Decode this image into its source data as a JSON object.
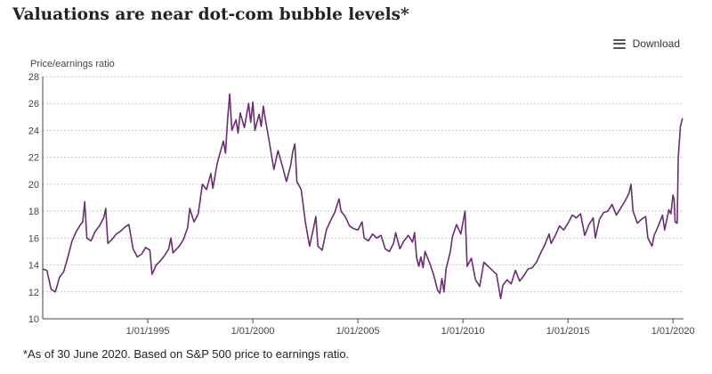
{
  "title": "Valuations are near dot-com bubble levels*",
  "download_label": "Download",
  "footnote": "*As of 30 June 2020. Based on S&P 500 price to earnings ratio.",
  "colors": {
    "line": "#6a2c72",
    "grid": "#c8c8c8",
    "axis": "#444444"
  },
  "chart_data": {
    "type": "line",
    "title": "Valuations are near dot-com bubble levels*",
    "ylabel": "Price/earnings ratio",
    "xlabel": "",
    "ylim": [
      10,
      28
    ],
    "yticks": [
      10,
      12,
      14,
      16,
      18,
      20,
      22,
      24,
      26,
      28
    ],
    "xlim": [
      1990.0,
      2020.5
    ],
    "xticks": [
      {
        "x": 1995,
        "label": "1/01/1995"
      },
      {
        "x": 2000,
        "label": "1/01/2000"
      },
      {
        "x": 2005,
        "label": "1/01/2005"
      },
      {
        "x": 2010,
        "label": "1/01/2010"
      },
      {
        "x": 2015,
        "label": "1/01/2015"
      },
      {
        "x": 2020,
        "label": "1/01/2020"
      }
    ],
    "grid": true,
    "series": [
      {
        "values": [
          [
            1990.0,
            13.7
          ],
          [
            1990.2,
            13.6
          ],
          [
            1990.4,
            12.2
          ],
          [
            1990.6,
            12.0
          ],
          [
            1990.8,
            13.1
          ],
          [
            1991.0,
            13.5
          ],
          [
            1991.2,
            14.6
          ],
          [
            1991.4,
            15.8
          ],
          [
            1991.6,
            16.5
          ],
          [
            1991.8,
            17.0
          ],
          [
            1991.9,
            17.2
          ],
          [
            1992.0,
            18.7
          ],
          [
            1992.1,
            16.0
          ],
          [
            1992.3,
            15.8
          ],
          [
            1992.5,
            16.5
          ],
          [
            1992.7,
            16.9
          ],
          [
            1992.9,
            17.5
          ],
          [
            1993.0,
            18.2
          ],
          [
            1993.1,
            15.6
          ],
          [
            1993.3,
            15.9
          ],
          [
            1993.5,
            16.3
          ],
          [
            1993.7,
            16.5
          ],
          [
            1993.9,
            16.8
          ],
          [
            1994.1,
            17.0
          ],
          [
            1994.3,
            15.2
          ],
          [
            1994.5,
            14.6
          ],
          [
            1994.7,
            14.8
          ],
          [
            1994.9,
            15.3
          ],
          [
            1995.1,
            15.1
          ],
          [
            1995.2,
            13.3
          ],
          [
            1995.4,
            14.0
          ],
          [
            1995.6,
            14.3
          ],
          [
            1995.8,
            14.7
          ],
          [
            1996.0,
            15.2
          ],
          [
            1996.1,
            16.0
          ],
          [
            1996.2,
            14.9
          ],
          [
            1996.5,
            15.4
          ],
          [
            1996.7,
            15.9
          ],
          [
            1996.9,
            16.8
          ],
          [
            1997.0,
            18.2
          ],
          [
            1997.2,
            17.2
          ],
          [
            1997.4,
            17.8
          ],
          [
            1997.6,
            20.0
          ],
          [
            1997.8,
            19.6
          ],
          [
            1998.0,
            20.8
          ],
          [
            1998.1,
            19.7
          ],
          [
            1998.3,
            21.5
          ],
          [
            1998.4,
            22.1
          ],
          [
            1998.6,
            23.2
          ],
          [
            1998.7,
            22.3
          ],
          [
            1998.8,
            24.8
          ],
          [
            1998.9,
            26.7
          ],
          [
            1999.0,
            24.0
          ],
          [
            1999.2,
            24.8
          ],
          [
            1999.3,
            23.8
          ],
          [
            1999.4,
            25.3
          ],
          [
            1999.6,
            24.2
          ],
          [
            1999.8,
            26.0
          ],
          [
            1999.9,
            24.6
          ],
          [
            2000.0,
            26.1
          ],
          [
            2000.1,
            24.0
          ],
          [
            2000.3,
            25.2
          ],
          [
            2000.4,
            24.3
          ],
          [
            2000.5,
            25.8
          ],
          [
            2000.6,
            24.8
          ],
          [
            2000.8,
            23.0
          ],
          [
            2001.0,
            21.1
          ],
          [
            2001.2,
            22.5
          ],
          [
            2001.4,
            21.4
          ],
          [
            2001.6,
            20.2
          ],
          [
            2001.8,
            21.4
          ],
          [
            2001.9,
            22.4
          ],
          [
            2002.0,
            23.0
          ],
          [
            2002.1,
            20.2
          ],
          [
            2002.3,
            19.6
          ],
          [
            2002.5,
            17.2
          ],
          [
            2002.7,
            15.4
          ],
          [
            2002.9,
            16.8
          ],
          [
            2003.0,
            17.6
          ],
          [
            2003.1,
            15.4
          ],
          [
            2003.3,
            15.1
          ],
          [
            2003.5,
            16.6
          ],
          [
            2003.7,
            17.3
          ],
          [
            2003.9,
            17.9
          ],
          [
            2004.1,
            18.9
          ],
          [
            2004.2,
            18.0
          ],
          [
            2004.4,
            17.6
          ],
          [
            2004.6,
            16.9
          ],
          [
            2004.8,
            16.7
          ],
          [
            2005.0,
            16.6
          ],
          [
            2005.2,
            17.2
          ],
          [
            2005.3,
            16.0
          ],
          [
            2005.5,
            15.8
          ],
          [
            2005.7,
            16.3
          ],
          [
            2005.9,
            16.0
          ],
          [
            2006.1,
            16.2
          ],
          [
            2006.3,
            15.2
          ],
          [
            2006.5,
            15.0
          ],
          [
            2006.7,
            15.6
          ],
          [
            2006.8,
            16.4
          ],
          [
            2007.0,
            15.2
          ],
          [
            2007.2,
            15.8
          ],
          [
            2007.4,
            16.2
          ],
          [
            2007.6,
            15.7
          ],
          [
            2007.7,
            16.4
          ],
          [
            2007.8,
            14.5
          ],
          [
            2007.9,
            13.9
          ],
          [
            2008.0,
            14.6
          ],
          [
            2008.1,
            13.8
          ],
          [
            2008.2,
            15.0
          ],
          [
            2008.4,
            14.2
          ],
          [
            2008.6,
            13.3
          ],
          [
            2008.8,
            12.1
          ],
          [
            2008.9,
            11.9
          ],
          [
            2009.0,
            13.0
          ],
          [
            2009.1,
            12.0
          ],
          [
            2009.2,
            13.7
          ],
          [
            2009.4,
            15.0
          ],
          [
            2009.5,
            16.1
          ],
          [
            2009.7,
            17.0
          ],
          [
            2009.9,
            16.3
          ],
          [
            2010.1,
            18.0
          ],
          [
            2010.2,
            13.9
          ],
          [
            2010.4,
            14.5
          ],
          [
            2010.6,
            12.9
          ],
          [
            2010.8,
            12.4
          ],
          [
            2011.0,
            14.2
          ],
          [
            2011.2,
            13.9
          ],
          [
            2011.4,
            13.6
          ],
          [
            2011.6,
            13.3
          ],
          [
            2011.8,
            11.5
          ],
          [
            2011.9,
            12.5
          ],
          [
            2012.1,
            12.9
          ],
          [
            2012.3,
            12.6
          ],
          [
            2012.5,
            13.6
          ],
          [
            2012.7,
            12.8
          ],
          [
            2012.9,
            13.2
          ],
          [
            2013.1,
            13.7
          ],
          [
            2013.3,
            13.8
          ],
          [
            2013.5,
            14.2
          ],
          [
            2013.7,
            14.9
          ],
          [
            2013.9,
            15.5
          ],
          [
            2014.1,
            16.3
          ],
          [
            2014.2,
            15.6
          ],
          [
            2014.4,
            16.2
          ],
          [
            2014.6,
            16.9
          ],
          [
            2014.8,
            16.6
          ],
          [
            2015.0,
            17.1
          ],
          [
            2015.2,
            17.7
          ],
          [
            2015.4,
            17.5
          ],
          [
            2015.6,
            17.8
          ],
          [
            2015.8,
            16.2
          ],
          [
            2016.0,
            17.0
          ],
          [
            2016.2,
            17.5
          ],
          [
            2016.3,
            16.0
          ],
          [
            2016.5,
            17.4
          ],
          [
            2016.7,
            17.9
          ],
          [
            2016.9,
            18.0
          ],
          [
            2017.1,
            18.5
          ],
          [
            2017.3,
            17.7
          ],
          [
            2017.5,
            18.2
          ],
          [
            2017.7,
            18.7
          ],
          [
            2017.9,
            19.3
          ],
          [
            2018.0,
            20.0
          ],
          [
            2018.1,
            18.0
          ],
          [
            2018.3,
            17.1
          ],
          [
            2018.5,
            17.4
          ],
          [
            2018.7,
            17.6
          ],
          [
            2018.8,
            16.0
          ],
          [
            2019.0,
            15.4
          ],
          [
            2019.1,
            16.2
          ],
          [
            2019.3,
            16.9
          ],
          [
            2019.5,
            17.7
          ],
          [
            2019.6,
            16.6
          ],
          [
            2019.8,
            18.1
          ],
          [
            2019.9,
            17.8
          ],
          [
            2020.0,
            19.2
          ],
          [
            2020.05,
            18.9
          ],
          [
            2020.1,
            17.2
          ],
          [
            2020.2,
            17.1
          ],
          [
            2020.25,
            22.0
          ],
          [
            2020.35,
            24.3
          ],
          [
            2020.45,
            24.9
          ]
        ]
      }
    ]
  }
}
